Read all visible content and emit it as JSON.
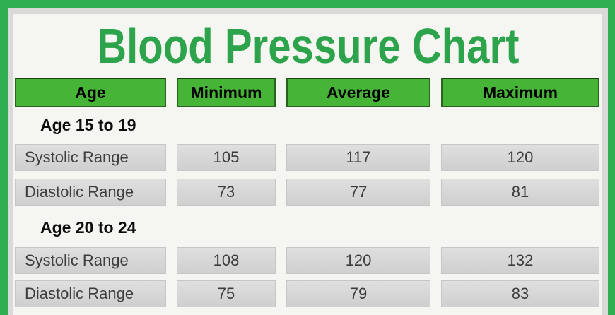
{
  "title": "Blood Pressure Chart",
  "colors": {
    "frame_green": "#2fae51",
    "inner_border_gray": "#d9d9d7",
    "background_offwhite": "#f5f5f1",
    "title_green": "#2da44c",
    "header_green": "#46b437",
    "header_border_dark_green": "#2a6320",
    "cell_gray": "#d4d4d4",
    "text_black": "#0d0d0d",
    "cell_text_gray": "#3d3d3d"
  },
  "table": {
    "headers": [
      "Age",
      "Minimum",
      "Average",
      "Maximum"
    ],
    "sections": [
      {
        "label": "Age 15 to 19",
        "rows": [
          {
            "label": "Systolic Range",
            "min": "105",
            "avg": "117",
            "max": "120"
          },
          {
            "label": "Diastolic Range",
            "min": "73",
            "avg": "77",
            "max": "81"
          }
        ]
      },
      {
        "label": "Age 20 to 24",
        "rows": [
          {
            "label": "Systolic Range",
            "min": "108",
            "avg": "120",
            "max": "132"
          },
          {
            "label": "Diastolic Range",
            "min": "75",
            "avg": "79",
            "max": "83"
          }
        ]
      }
    ]
  },
  "chart_data": {
    "type": "table",
    "title": "Blood Pressure Chart",
    "columns": [
      "Age",
      "Minimum",
      "Average",
      "Maximum"
    ],
    "sections": [
      {
        "age_group": "Age 15 to 19",
        "systolic": {
          "min": 105,
          "avg": 117,
          "max": 120
        },
        "diastolic": {
          "min": 73,
          "avg": 77,
          "max": 81
        }
      },
      {
        "age_group": "Age 20 to 24",
        "systolic": {
          "min": 108,
          "avg": 120,
          "max": 132
        },
        "diastolic": {
          "min": 75,
          "avg": 79,
          "max": 83
        }
      }
    ]
  }
}
